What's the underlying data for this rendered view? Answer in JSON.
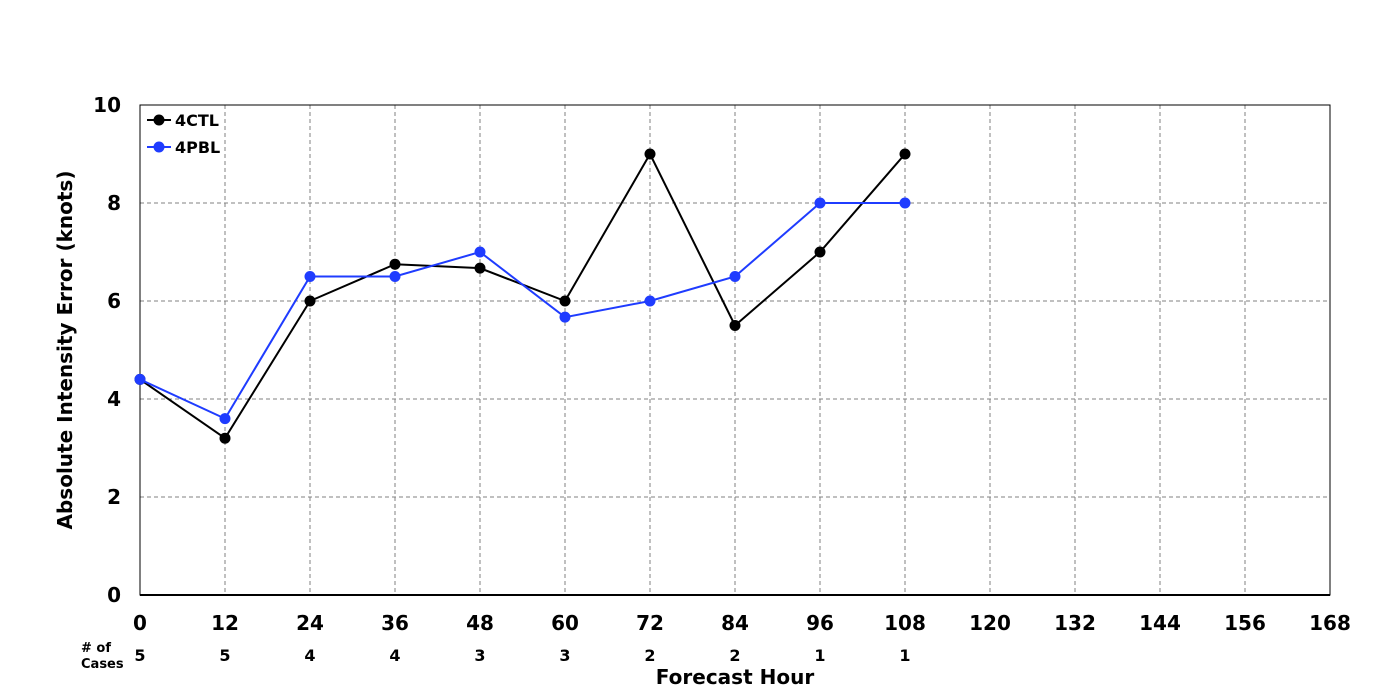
{
  "chart_data": {
    "type": "line",
    "title": "",
    "xlabel": "Forecast Hour",
    "ylabel": "Absolute Intensity Error (knots)",
    "xlim": [
      0,
      168
    ],
    "ylim": [
      0,
      10
    ],
    "xticks": [
      "0",
      "12",
      "24",
      "36",
      "48",
      "60",
      "72",
      "84",
      "96",
      "108",
      "120",
      "132",
      "144",
      "156",
      "168"
    ],
    "yticks": [
      "0",
      "2",
      "4",
      "6",
      "8",
      "10"
    ],
    "grid": true,
    "legend_position": "top-left",
    "x": [
      0,
      12,
      24,
      36,
      48,
      60,
      72,
      84,
      96,
      108
    ],
    "series": [
      {
        "name": "4CTL",
        "color": "#000000",
        "values": [
          4.4,
          3.2,
          6.0,
          6.75,
          6.67,
          6.0,
          9.0,
          5.5,
          7.0,
          9.0
        ]
      },
      {
        "name": "4PBL",
        "color": "#1f3cff",
        "values": [
          4.4,
          3.6,
          6.5,
          6.5,
          7.0,
          5.67,
          6.0,
          6.5,
          8.0,
          8.0
        ]
      }
    ],
    "cases": {
      "label_line1": "# of",
      "label_line2": "Cases",
      "x": [
        0,
        12,
        24,
        36,
        48,
        60,
        72,
        84,
        96,
        108
      ],
      "values": [
        "5",
        "5",
        "4",
        "4",
        "3",
        "3",
        "2",
        "2",
        "1",
        "1"
      ]
    }
  }
}
